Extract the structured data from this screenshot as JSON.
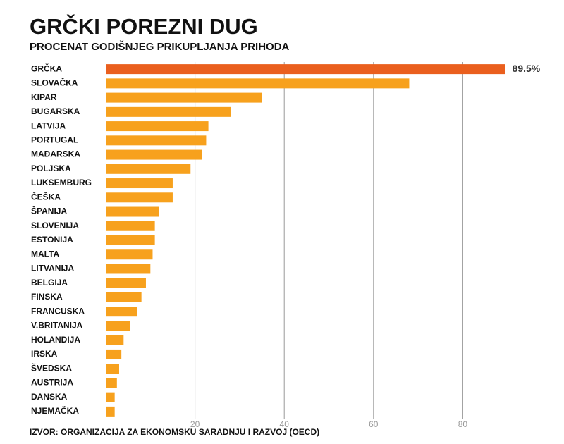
{
  "chart_data": {
    "type": "barh",
    "title": "GRČKI POREZNI DUG",
    "subtitle": "PROCENAT GODIŠNJEG PRIKUPLJANJA PRIHODA",
    "source": "IZVOR: ORGANIZACIJA ZA EKONOMSKU SARADNJU I RAZVOJ (OECD)",
    "categories": [
      "GRČKA",
      "SLOVAČKA",
      "KIPAR",
      "BUGARSKA",
      "LATVIJA",
      "PORTUGAL",
      "MAĐARSKA",
      "POLJSKA",
      "LUKSEMBURG",
      "ČEŠKA",
      "ŠPANIJA",
      "SLOVENIJA",
      "ESTONIJA",
      "MALTA",
      "LITVANIJA",
      "BELGIJA",
      "FINSKA",
      "FRANCUSKA",
      "V.BRITANIJA",
      "HOLANDIJA",
      "IRSKA",
      "ŠVEDSKA",
      "AUSTRIJA",
      "DANSKA",
      "NJEMAČKA"
    ],
    "values": [
      89.5,
      68,
      35,
      28,
      23,
      22.5,
      21.5,
      19,
      15,
      15,
      12,
      11,
      11,
      10.5,
      10,
      9,
      8,
      7,
      5.5,
      4,
      3.5,
      3,
      2.5,
      2,
      2
    ],
    "value_labels": [
      "89.5%",
      null,
      null,
      null,
      null,
      null,
      null,
      null,
      null,
      null,
      null,
      null,
      null,
      null,
      null,
      null,
      null,
      null,
      null,
      null,
      null,
      null,
      null,
      null,
      null
    ],
    "colors": [
      "#ea5f1e",
      "#f7a11d",
      "#f7a11d",
      "#f7a11d",
      "#f7a11d",
      "#f7a11d",
      "#f7a11d",
      "#f7a11d",
      "#f7a11d",
      "#f7a11d",
      "#f7a11d",
      "#f7a11d",
      "#f7a11d",
      "#f7a11d",
      "#f7a11d",
      "#f7a11d",
      "#f7a11d",
      "#f7a11d",
      "#f7a11d",
      "#f7a11d",
      "#f7a11d",
      "#f7a11d",
      "#f7a11d",
      "#f7a11d",
      "#f7a11d"
    ],
    "xlim": [
      0,
      100
    ],
    "xticks": [
      20,
      40,
      60,
      80
    ],
    "grid": true
  }
}
